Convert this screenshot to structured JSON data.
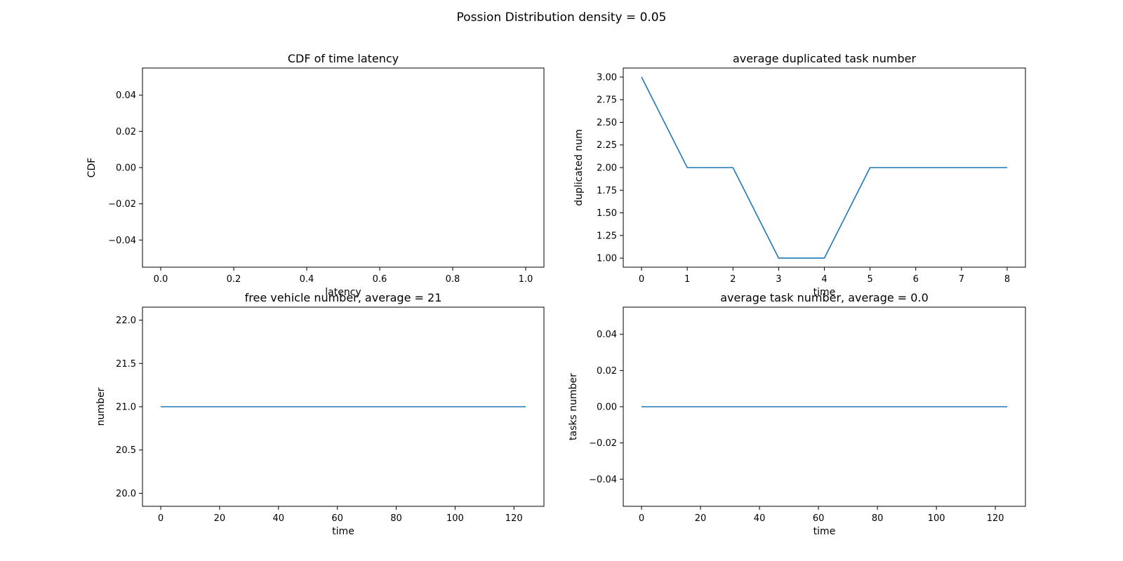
{
  "figure": {
    "suptitle": "Possion Distribution density = 0.05"
  },
  "chart_data": [
    {
      "type": "line",
      "title": "CDF of time latency",
      "xlabel": "latency",
      "ylabel": "CDF",
      "xlim": [
        -0.05,
        1.05
      ],
      "ylim": [
        -0.055,
        0.055
      ],
      "xticks": [
        0.0,
        0.2,
        0.4,
        0.6,
        0.8,
        1.0
      ],
      "xtick_labels": [
        "0.0",
        "0.2",
        "0.4",
        "0.6",
        "0.8",
        "1.0"
      ],
      "yticks": [
        -0.04,
        -0.02,
        0.0,
        0.02,
        0.04
      ],
      "ytick_labels": [
        "−0.04",
        "−0.02",
        "0.00",
        "0.02",
        "0.04"
      ],
      "series": []
    },
    {
      "type": "line",
      "title": "average duplicated task number",
      "xlabel": "time",
      "ylabel": "duplicated num",
      "xlim": [
        -0.4,
        8.4
      ],
      "ylim": [
        0.9,
        3.1
      ],
      "xticks": [
        0,
        1,
        2,
        3,
        4,
        5,
        6,
        7,
        8
      ],
      "xtick_labels": [
        "0",
        "1",
        "2",
        "3",
        "4",
        "5",
        "6",
        "7",
        "8"
      ],
      "yticks": [
        1.0,
        1.25,
        1.5,
        1.75,
        2.0,
        2.25,
        2.5,
        2.75,
        3.0
      ],
      "ytick_labels": [
        "1.00",
        "1.25",
        "1.50",
        "1.75",
        "2.00",
        "2.25",
        "2.50",
        "2.75",
        "3.00"
      ],
      "series": [
        {
          "x": [
            0,
            1,
            2,
            3,
            4,
            5,
            6,
            7,
            8
          ],
          "y": [
            3,
            2,
            2,
            1,
            1,
            2,
            2,
            2,
            2
          ],
          "color": "#1f77b4"
        }
      ]
    },
    {
      "type": "line",
      "title": "free vehicle number, average = 21",
      "xlabel": "time",
      "ylabel": "number",
      "xlim": [
        -6.2,
        130.2
      ],
      "ylim": [
        19.85,
        22.15
      ],
      "xticks": [
        0,
        20,
        40,
        60,
        80,
        100,
        120
      ],
      "xtick_labels": [
        "0",
        "20",
        "40",
        "60",
        "80",
        "100",
        "120"
      ],
      "yticks": [
        20.0,
        20.5,
        21.0,
        21.5,
        22.0
      ],
      "ytick_labels": [
        "20.0",
        "20.5",
        "21.0",
        "21.5",
        "22.0"
      ],
      "series": [
        {
          "x": [
            0,
            124
          ],
          "y": [
            21,
            21
          ],
          "color": "#1f77b4"
        }
      ]
    },
    {
      "type": "line",
      "title": "average task number, average = 0.0",
      "xlabel": "time",
      "ylabel": "tasks number",
      "xlim": [
        -6.2,
        130.2
      ],
      "ylim": [
        -0.055,
        0.055
      ],
      "xticks": [
        0,
        20,
        40,
        60,
        80,
        100,
        120
      ],
      "xtick_labels": [
        "0",
        "20",
        "40",
        "60",
        "80",
        "100",
        "120"
      ],
      "yticks": [
        -0.04,
        -0.02,
        0.0,
        0.02,
        0.04
      ],
      "ytick_labels": [
        "−0.04",
        "−0.02",
        "0.00",
        "0.02",
        "0.04"
      ],
      "series": [
        {
          "x": [
            0,
            124
          ],
          "y": [
            0,
            0
          ],
          "color": "#1f77b4"
        }
      ]
    }
  ]
}
